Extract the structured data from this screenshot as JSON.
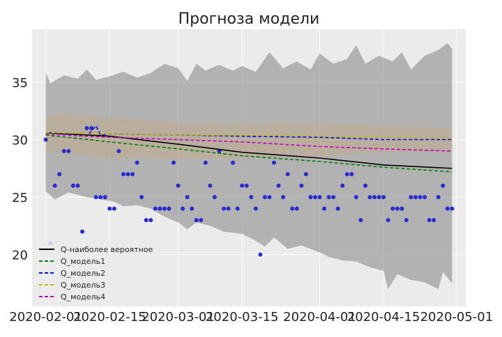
{
  "chart_data": {
    "type": "line",
    "title": "Прогноза модели",
    "xlabel": "",
    "ylabel": "",
    "x_start": "2020-02-01",
    "x_end": "2020-04-30",
    "xlim": [
      "2020-01-29",
      "2020-05-03"
    ],
    "ylim": [
      15.5,
      39.6
    ],
    "x_ticks": [
      {
        "date": "2020-02-01",
        "label": "2020-02-01"
      },
      {
        "date": "2020-02-15",
        "label": "2020-02-15"
      },
      {
        "date": "2020-03-01",
        "label": "2020-03-01"
      },
      {
        "date": "2020-03-15",
        "label": "2020-03-15"
      },
      {
        "date": "2020-04-01",
        "label": "2020-04-01"
      },
      {
        "date": "2020-04-15",
        "label": "2020-04-15"
      },
      {
        "date": "2020-05-01",
        "label": "2020-05-01"
      }
    ],
    "y_ticks": [
      {
        "value": 20,
        "label": "20"
      },
      {
        "value": 25,
        "label": "25"
      },
      {
        "value": 30,
        "label": "30"
      },
      {
        "value": 35,
        "label": "35"
      }
    ],
    "grid": true,
    "legend_position": "lower-left",
    "background_color": "#ebebeb",
    "series": [
      {
        "name": "Q-наиболее вероятное",
        "color": "#000000",
        "style": "solid",
        "points": [
          [
            "2020-02-01",
            30.6
          ],
          [
            "2020-02-15",
            30.3
          ],
          [
            "2020-03-01",
            29.6
          ],
          [
            "2020-03-15",
            28.9
          ],
          [
            "2020-04-01",
            28.4
          ],
          [
            "2020-04-15",
            27.8
          ],
          [
            "2020-04-30",
            27.5
          ]
        ]
      },
      {
        "name": "Q_модель1",
        "color": "#008000",
        "style": "dashed",
        "points": [
          [
            "2020-02-01",
            30.4
          ],
          [
            "2020-02-15",
            29.8
          ],
          [
            "2020-03-01",
            29.2
          ],
          [
            "2020-03-15",
            28.6
          ],
          [
            "2020-04-01",
            28.1
          ],
          [
            "2020-04-15",
            27.6
          ],
          [
            "2020-04-30",
            27.2
          ]
        ]
      },
      {
        "name": "Q_модель2",
        "color": "#0000ff",
        "style": "dashed",
        "points": [
          [
            "2020-02-01",
            30.6
          ],
          [
            "2020-02-10",
            30.3
          ],
          [
            "2020-02-12",
            31.2
          ],
          [
            "2020-02-13",
            30.4
          ],
          [
            "2020-02-15",
            30.5
          ],
          [
            "2020-03-01",
            30.4
          ],
          [
            "2020-03-15",
            30.3
          ],
          [
            "2020-04-01",
            30.2
          ],
          [
            "2020-04-15",
            30.0
          ],
          [
            "2020-04-30",
            30.0
          ]
        ]
      },
      {
        "name": "Q_модель3",
        "color": "#bfbf00",
        "style": "dashed",
        "points": [
          [
            "2020-02-01",
            30.6
          ],
          [
            "2020-02-15",
            30.5
          ],
          [
            "2020-03-01",
            30.4
          ],
          [
            "2020-03-15",
            30.4
          ],
          [
            "2020-04-01",
            30.3
          ],
          [
            "2020-04-15",
            30.2
          ],
          [
            "2020-04-30",
            30.1
          ]
        ]
      },
      {
        "name": "Q_модель4",
        "color": "#bf00bf",
        "style": "dashed",
        "points": [
          [
            "2020-02-01",
            30.5
          ],
          [
            "2020-02-15",
            30.2
          ],
          [
            "2020-03-01",
            30.0
          ],
          [
            "2020-03-15",
            29.8
          ],
          [
            "2020-04-01",
            29.4
          ],
          [
            "2020-04-15",
            29.2
          ],
          [
            "2020-04-30",
            29.0
          ]
        ]
      }
    ],
    "bands": [
      {
        "color": "#8c8c8c",
        "opacity": 0.6,
        "lower": [
          [
            "2020-02-01",
            25.5
          ],
          [
            "2020-02-03",
            24.8
          ],
          [
            "2020-02-06",
            25.4
          ],
          [
            "2020-02-10",
            25.0
          ],
          [
            "2020-02-13",
            24.8
          ],
          [
            "2020-02-16",
            24.6
          ],
          [
            "2020-02-18",
            24.2
          ],
          [
            "2020-02-21",
            24.3
          ],
          [
            "2020-02-24",
            24.0
          ],
          [
            "2020-02-27",
            23.3
          ],
          [
            "2020-03-01",
            22.8
          ],
          [
            "2020-03-03",
            22.2
          ],
          [
            "2020-03-05",
            22.8
          ],
          [
            "2020-03-08",
            22.5
          ],
          [
            "2020-03-11",
            22.0
          ],
          [
            "2020-03-15",
            21.8
          ],
          [
            "2020-03-18",
            21.2
          ],
          [
            "2020-03-20",
            20.7
          ],
          [
            "2020-03-22",
            21.5
          ],
          [
            "2020-03-25",
            20.5
          ],
          [
            "2020-03-28",
            20.8
          ],
          [
            "2020-04-01",
            20.2
          ],
          [
            "2020-04-03",
            19.8
          ],
          [
            "2020-04-06",
            19.5
          ],
          [
            "2020-04-09",
            19.4
          ],
          [
            "2020-04-12",
            18.9
          ],
          [
            "2020-04-15",
            18.6
          ],
          [
            "2020-04-16",
            17.0
          ],
          [
            "2020-04-18",
            18.3
          ],
          [
            "2020-04-21",
            17.8
          ],
          [
            "2020-04-24",
            17.6
          ],
          [
            "2020-04-27",
            17.0
          ],
          [
            "2020-04-28",
            18.5
          ],
          [
            "2020-04-30",
            17.5
          ]
        ],
        "upper": [
          [
            "2020-02-01",
            35.8
          ],
          [
            "2020-02-02",
            34.9
          ],
          [
            "2020-02-05",
            35.6
          ],
          [
            "2020-02-08",
            35.3
          ],
          [
            "2020-02-10",
            36.1
          ],
          [
            "2020-02-12",
            35.2
          ],
          [
            "2020-02-15",
            35.5
          ],
          [
            "2020-02-18",
            35.9
          ],
          [
            "2020-02-21",
            35.4
          ],
          [
            "2020-02-24",
            35.8
          ],
          [
            "2020-02-27",
            36.6
          ],
          [
            "2020-03-01",
            36.2
          ],
          [
            "2020-03-03",
            35.1
          ],
          [
            "2020-03-05",
            36.6
          ],
          [
            "2020-03-07",
            36.0
          ],
          [
            "2020-03-10",
            36.5
          ],
          [
            "2020-03-13",
            36.0
          ],
          [
            "2020-03-15",
            36.4
          ],
          [
            "2020-03-18",
            35.9
          ],
          [
            "2020-03-21",
            37.6
          ],
          [
            "2020-03-24",
            36.2
          ],
          [
            "2020-03-27",
            36.8
          ],
          [
            "2020-03-30",
            36.1
          ],
          [
            "2020-04-01",
            37.5
          ],
          [
            "2020-04-04",
            36.6
          ],
          [
            "2020-04-07",
            37.0
          ],
          [
            "2020-04-09",
            38.2
          ],
          [
            "2020-04-11",
            36.6
          ],
          [
            "2020-04-14",
            37.3
          ],
          [
            "2020-04-17",
            36.8
          ],
          [
            "2020-04-19",
            37.6
          ],
          [
            "2020-04-21",
            36.1
          ],
          [
            "2020-04-24",
            37.3
          ],
          [
            "2020-04-27",
            37.8
          ],
          [
            "2020-04-29",
            38.4
          ],
          [
            "2020-04-30",
            37.9
          ]
        ]
      },
      {
        "color": "#c9a97a",
        "opacity": 0.35,
        "lower": [
          [
            "2020-02-01",
            29.0
          ],
          [
            "2020-02-10",
            28.6
          ],
          [
            "2020-02-15",
            28.4
          ],
          [
            "2020-03-01",
            28.3
          ],
          [
            "2020-03-15",
            28.4
          ],
          [
            "2020-04-01",
            28.6
          ],
          [
            "2020-04-15",
            28.9
          ],
          [
            "2020-04-30",
            29.0
          ]
        ],
        "upper": [
          [
            "2020-02-01",
            32.0
          ],
          [
            "2020-02-05",
            32.3
          ],
          [
            "2020-02-15",
            31.9
          ],
          [
            "2020-03-01",
            31.5
          ],
          [
            "2020-03-15",
            31.4
          ],
          [
            "2020-04-01",
            31.5
          ],
          [
            "2020-04-15",
            31.2
          ],
          [
            "2020-04-30",
            31.0
          ]
        ]
      }
    ],
    "scatter": {
      "color": "#2a2ad4",
      "points": [
        [
          "2020-02-01",
          30
        ],
        [
          "2020-02-02",
          21
        ],
        [
          "2020-02-03",
          26
        ],
        [
          "2020-02-04",
          27
        ],
        [
          "2020-02-05",
          29
        ],
        [
          "2020-02-06",
          29
        ],
        [
          "2020-02-07",
          26
        ],
        [
          "2020-02-08",
          26
        ],
        [
          "2020-02-09",
          22
        ],
        [
          "2020-02-10",
          31
        ],
        [
          "2020-02-11",
          31
        ],
        [
          "2020-02-12",
          25
        ],
        [
          "2020-02-13",
          25
        ],
        [
          "2020-02-14",
          25
        ],
        [
          "2020-02-15",
          24
        ],
        [
          "2020-02-16",
          24
        ],
        [
          "2020-02-17",
          29
        ],
        [
          "2020-02-18",
          27
        ],
        [
          "2020-02-19",
          27
        ],
        [
          "2020-02-20",
          27
        ],
        [
          "2020-02-21",
          28
        ],
        [
          "2020-02-22",
          25
        ],
        [
          "2020-02-23",
          23
        ],
        [
          "2020-02-24",
          23
        ],
        [
          "2020-02-25",
          24
        ],
        [
          "2020-02-26",
          24
        ],
        [
          "2020-02-27",
          24
        ],
        [
          "2020-02-28",
          24
        ],
        [
          "2020-02-29",
          28
        ],
        [
          "2020-03-01",
          26
        ],
        [
          "2020-03-02",
          24
        ],
        [
          "2020-03-03",
          25
        ],
        [
          "2020-03-04",
          24
        ],
        [
          "2020-03-05",
          23
        ],
        [
          "2020-03-06",
          23
        ],
        [
          "2020-03-07",
          28
        ],
        [
          "2020-03-08",
          26
        ],
        [
          "2020-03-09",
          25
        ],
        [
          "2020-03-10",
          29
        ],
        [
          "2020-03-11",
          24
        ],
        [
          "2020-03-12",
          24
        ],
        [
          "2020-03-13",
          28
        ],
        [
          "2020-03-14",
          24
        ],
        [
          "2020-03-15",
          26
        ],
        [
          "2020-03-16",
          26
        ],
        [
          "2020-03-17",
          25
        ],
        [
          "2020-03-18",
          24
        ],
        [
          "2020-03-19",
          20
        ],
        [
          "2020-03-20",
          25
        ],
        [
          "2020-03-21",
          25
        ],
        [
          "2020-03-22",
          28
        ],
        [
          "2020-03-23",
          26
        ],
        [
          "2020-03-24",
          25
        ],
        [
          "2020-03-25",
          27
        ],
        [
          "2020-03-26",
          24
        ],
        [
          "2020-03-27",
          24
        ],
        [
          "2020-03-28",
          26
        ],
        [
          "2020-03-29",
          27
        ],
        [
          "2020-03-30",
          25
        ],
        [
          "2020-03-31",
          25
        ],
        [
          "2020-04-01",
          25
        ],
        [
          "2020-04-02",
          24
        ],
        [
          "2020-04-03",
          25
        ],
        [
          "2020-04-04",
          25
        ],
        [
          "2020-04-05",
          24
        ],
        [
          "2020-04-06",
          26
        ],
        [
          "2020-04-07",
          27
        ],
        [
          "2020-04-08",
          27
        ],
        [
          "2020-04-09",
          25
        ],
        [
          "2020-04-10",
          23
        ],
        [
          "2020-04-11",
          26
        ],
        [
          "2020-04-12",
          25
        ],
        [
          "2020-04-13",
          25
        ],
        [
          "2020-04-14",
          25
        ],
        [
          "2020-04-15",
          25
        ],
        [
          "2020-04-16",
          23
        ],
        [
          "2020-04-17",
          24
        ],
        [
          "2020-04-18",
          24
        ],
        [
          "2020-04-19",
          24
        ],
        [
          "2020-04-20",
          23
        ],
        [
          "2020-04-21",
          25
        ],
        [
          "2020-04-22",
          25
        ],
        [
          "2020-04-23",
          25
        ],
        [
          "2020-04-24",
          25
        ],
        [
          "2020-04-25",
          23
        ],
        [
          "2020-04-26",
          23
        ],
        [
          "2020-04-27",
          25
        ],
        [
          "2020-04-28",
          26
        ],
        [
          "2020-04-29",
          24
        ],
        [
          "2020-04-30",
          24
        ]
      ]
    }
  }
}
